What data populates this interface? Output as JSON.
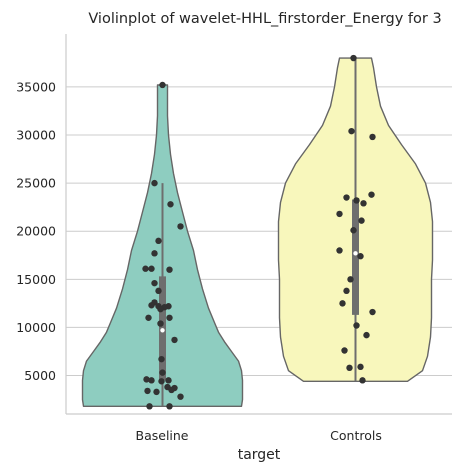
{
  "chart_data": {
    "type": "violin",
    "title": "Violinplot of wavelet-HHL_firstorder_Energy for 3",
    "xlabel": "target",
    "ylabel": "",
    "categories": [
      "Baseline",
      "Controls"
    ],
    "ylim": [
      1000,
      40500
    ],
    "yticks": [
      5000,
      10000,
      15000,
      20000,
      25000,
      30000,
      35000
    ],
    "ytick_labels": [
      "5000",
      "10000",
      "15000",
      "20000",
      "25000",
      "30000",
      "35000"
    ],
    "grid": true,
    "series": [
      {
        "category": "Baseline",
        "color": "#8ecdc0",
        "box": {
          "q1": 4500,
          "median": 9700,
          "q3": 15300,
          "whisker_low": 1800,
          "whisker_high": 25000
        },
        "density": [
          [
            1800,
            79
          ],
          [
            2500,
            80
          ],
          [
            3500,
            80
          ],
          [
            4500,
            80
          ],
          [
            5500,
            79
          ],
          [
            6500,
            76
          ],
          [
            7500,
            69
          ],
          [
            8500,
            62
          ],
          [
            9500,
            56
          ],
          [
            10500,
            52
          ],
          [
            12000,
            46
          ],
          [
            14000,
            40
          ],
          [
            16000,
            35
          ],
          [
            18000,
            31
          ],
          [
            20000,
            25
          ],
          [
            22000,
            20
          ],
          [
            24000,
            15
          ],
          [
            26000,
            11
          ],
          [
            28000,
            8
          ],
          [
            30000,
            6
          ],
          [
            32000,
            5
          ],
          [
            34000,
            5
          ],
          [
            35200,
            5
          ]
        ],
        "points": [
          [
            35200,
            0
          ],
          [
            25000,
            -8
          ],
          [
            22800,
            8
          ],
          [
            20500,
            18
          ],
          [
            19000,
            -4
          ],
          [
            17700,
            -8
          ],
          [
            16100,
            -17
          ],
          [
            16100,
            -11
          ],
          [
            16000,
            7
          ],
          [
            14600,
            -8
          ],
          [
            13800,
            -4
          ],
          [
            12600,
            -8
          ],
          [
            12300,
            -11
          ],
          [
            12200,
            -4
          ],
          [
            12200,
            6
          ],
          [
            12100,
            2
          ],
          [
            11900,
            -2
          ],
          [
            11000,
            -14
          ],
          [
            11000,
            7
          ],
          [
            10400,
            -2
          ],
          [
            8700,
            12
          ],
          [
            6700,
            -1
          ],
          [
            5300,
            0
          ],
          [
            4600,
            -16
          ],
          [
            4500,
            -11
          ],
          [
            4400,
            -1
          ],
          [
            4500,
            6
          ],
          [
            3800,
            5
          ],
          [
            3700,
            12
          ],
          [
            3500,
            9
          ],
          [
            3400,
            -15
          ],
          [
            3300,
            -6
          ],
          [
            2800,
            18
          ],
          [
            1800,
            -13
          ],
          [
            1800,
            7
          ]
        ]
      },
      {
        "category": "Controls",
        "color": "#f8f7bc",
        "box": {
          "q1": 11300,
          "median": 17700,
          "q3": 23300,
          "whisker_low": 4400,
          "whisker_high": 38000
        },
        "density": [
          [
            4400,
            52
          ],
          [
            5500,
            67
          ],
          [
            7000,
            72
          ],
          [
            9000,
            75
          ],
          [
            11000,
            76
          ],
          [
            13000,
            76
          ],
          [
            15000,
            76
          ],
          [
            17000,
            77
          ],
          [
            19000,
            77
          ],
          [
            21000,
            77
          ],
          [
            23000,
            75
          ],
          [
            25000,
            70
          ],
          [
            27000,
            60
          ],
          [
            29000,
            46
          ],
          [
            31000,
            33
          ],
          [
            33000,
            25
          ],
          [
            35000,
            21
          ],
          [
            37000,
            18
          ],
          [
            38000,
            16
          ]
        ],
        "points": [
          [
            38000,
            -2
          ],
          [
            30400,
            -4
          ],
          [
            29800,
            17
          ],
          [
            23800,
            16
          ],
          [
            23500,
            -9
          ],
          [
            23200,
            1
          ],
          [
            22900,
            8
          ],
          [
            21800,
            -16
          ],
          [
            21100,
            6
          ],
          [
            20100,
            -2
          ],
          [
            18000,
            -16
          ],
          [
            17400,
            5
          ],
          [
            15000,
            -5
          ],
          [
            13800,
            -9
          ],
          [
            12500,
            -13
          ],
          [
            11600,
            17
          ],
          [
            10200,
            1
          ],
          [
            9200,
            11
          ],
          [
            7600,
            -11
          ],
          [
            5900,
            5
          ],
          [
            5800,
            -6
          ],
          [
            4500,
            7
          ]
        ]
      }
    ]
  }
}
